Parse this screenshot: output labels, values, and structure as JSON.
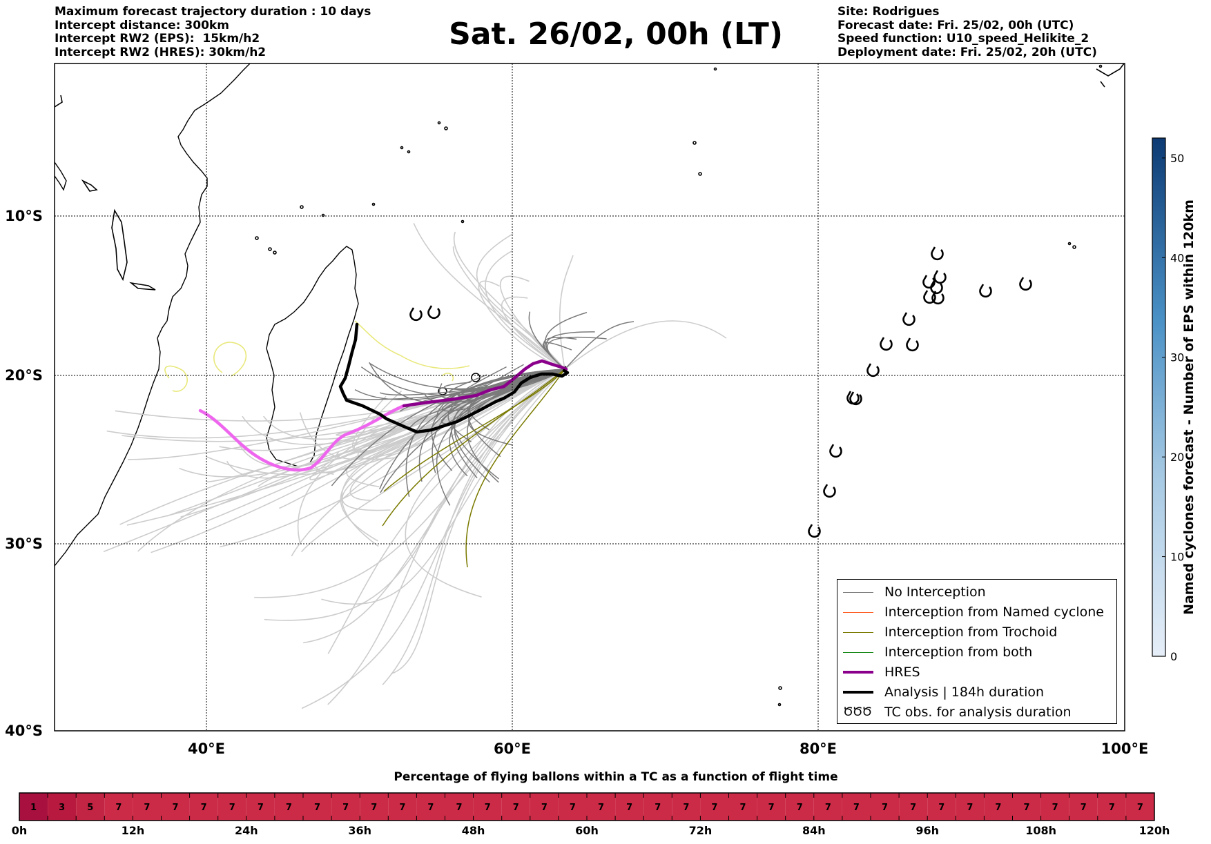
{
  "header_left": [
    "Maximum forecast trajectory duration : 10 days",
    "Intercept distance: 300km",
    "Intercept RW2 (EPS):  15km/h2",
    "Intercept RW2 (HRES): 30km/h2"
  ],
  "header_right": [
    "Site: Rodrigues",
    "Forecast date: Fri. 25/02, 00h (UTC)",
    "Speed function: U10_speed_Helikite_2",
    "Deployment date: Fri. 25/02, 20h (UTC)"
  ],
  "title": "Sat. 26/02, 00h (LT)",
  "map": {
    "lat_labels": [
      "10°S",
      "20°S",
      "30°S",
      "40°S"
    ],
    "lon_labels": [
      "40°E",
      "60°E",
      "80°E",
      "100°E"
    ],
    "colors": {
      "no_interception": "#7a7a7a",
      "eps_light": "#cccccc",
      "named_cyclone": "#ff5a1f",
      "trochoid": "#7a7a00",
      "both": "#1a8a1a",
      "hres": "#8b008b",
      "hres_light": "#ee66ee",
      "analysis": "#000000",
      "yellow_track": "#e8e87a"
    }
  },
  "legend": {
    "items": [
      {
        "label": "No Interception",
        "color": "#7a7a7a"
      },
      {
        "label": "Interception from Named cyclone",
        "color": "#ff5a1f"
      },
      {
        "label": "Interception from Trochoid",
        "color": "#7a7a00"
      },
      {
        "label": "Interception from both",
        "color": "#1a8a1a"
      },
      {
        "label": "HRES",
        "color": "#8b008b"
      },
      {
        "label": "Analysis | 184h duration",
        "color": "#000000"
      },
      {
        "label": "TC obs. for analysis duration",
        "color": "#000000",
        "icon": "cyclone-icon"
      }
    ],
    "tc_symbols": "ԾԾԾ"
  },
  "colorbar": {
    "label": "Named cyclones forecast - Number of EPS within 120km",
    "ticks": [
      "0",
      "10",
      "20",
      "30",
      "40",
      "50"
    ],
    "range": [
      0,
      52
    ],
    "color_low": "#e6eef8",
    "color_high": "#0d3a73"
  },
  "timeline": {
    "title": "Percentage of flying ballons within a TC as a function of flight time",
    "cells": [
      "1",
      "3",
      "5",
      "7",
      "7",
      "7",
      "7",
      "7",
      "7",
      "7",
      "7",
      "7",
      "7",
      "7",
      "7",
      "7",
      "7",
      "7",
      "7",
      "7",
      "7",
      "7",
      "7",
      "7",
      "7",
      "7",
      "7",
      "7",
      "7",
      "7",
      "7",
      "7",
      "7",
      "7",
      "7",
      "7",
      "7",
      "7",
      "7",
      "7"
    ],
    "labels": [
      "0h",
      "12h",
      "24h",
      "36h",
      "48h",
      "60h",
      "72h",
      "84h",
      "96h",
      "108h",
      "120h"
    ],
    "colors": {
      "1": "#a8103f",
      "3": "#b8193f",
      "5": "#c22443",
      "7": "#cc2b47"
    }
  }
}
